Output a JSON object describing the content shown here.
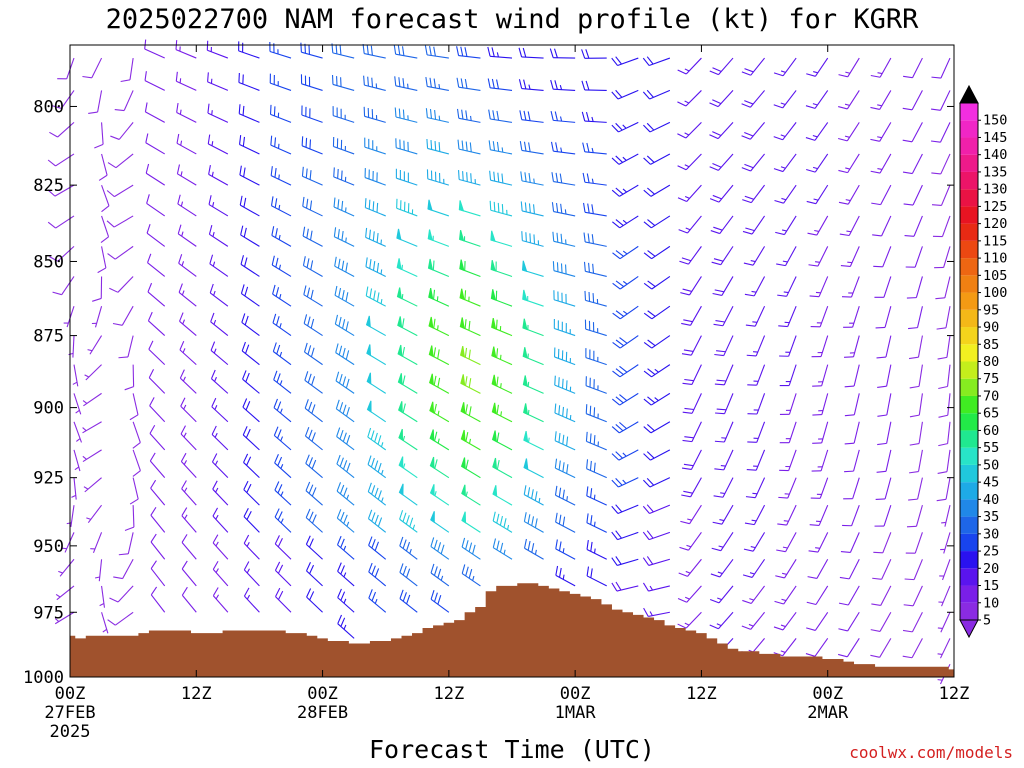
{
  "chart_data": {
    "type": "wind_profile",
    "title": "2025022700 NAM forecast wind profile (kt) for KGRR",
    "xlabel": "Forecast Time (UTC)",
    "ylabel": "",
    "credit": "coolwx.com/models",
    "x_unit": "hours since 2025-02-27 00Z",
    "xlim": [
      0,
      84
    ],
    "ylim": [
      1000,
      781
    ],
    "y_ticks": [
      {
        "value": 800,
        "label": "800"
      },
      {
        "value": 825,
        "label": "825"
      },
      {
        "value": 850,
        "label": "850"
      },
      {
        "value": 875,
        "label": "875"
      },
      {
        "value": 900,
        "label": "900"
      },
      {
        "value": 925,
        "label": "925"
      },
      {
        "value": 950,
        "label": "950"
      },
      {
        "value": 975,
        "label": "975"
      },
      {
        "value": 1000,
        "label": "1000"
      }
    ],
    "x_ticks": [
      {
        "value": 0,
        "line1": "00Z",
        "line2": "27FEB",
        "line3": "2025"
      },
      {
        "value": 12,
        "line1": "12Z",
        "line2": "",
        "line3": ""
      },
      {
        "value": 24,
        "line1": "00Z",
        "line2": "28FEB",
        "line3": ""
      },
      {
        "value": 36,
        "line1": "12Z",
        "line2": "",
        "line3": ""
      },
      {
        "value": 48,
        "line1": "00Z",
        "line2": "1MAR",
        "line3": ""
      },
      {
        "value": 60,
        "line1": "12Z",
        "line2": "",
        "line3": ""
      },
      {
        "value": 72,
        "line1": "00Z",
        "line2": "2MAR",
        "line3": ""
      },
      {
        "value": 84,
        "line1": "12Z",
        "line2": "",
        "line3": ""
      }
    ],
    "surface_pressure": {
      "hours": [
        0,
        1,
        2,
        3,
        4,
        5,
        6,
        7,
        8,
        9,
        10,
        11,
        12,
        13,
        14,
        15,
        16,
        17,
        18,
        19,
        20,
        21,
        22,
        23,
        24,
        25,
        26,
        27,
        28,
        29,
        30,
        31,
        32,
        33,
        34,
        35,
        36,
        37,
        38,
        39,
        40,
        41,
        42,
        43,
        44,
        45,
        46,
        47,
        48,
        49,
        50,
        51,
        52,
        53,
        54,
        55,
        56,
        57,
        58,
        59,
        60,
        61,
        62,
        63,
        64,
        65,
        66,
        67,
        68,
        69,
        70,
        71,
        72,
        73,
        74,
        75,
        76,
        77,
        78,
        79,
        80,
        81,
        82,
        83,
        84
      ],
      "hpa": [
        984,
        985,
        984,
        984,
        984,
        984,
        984,
        983,
        982,
        982,
        982,
        982,
        983,
        983,
        983,
        982,
        982,
        982,
        982,
        982,
        982,
        983,
        983,
        984,
        985,
        986,
        986,
        987,
        987,
        986,
        986,
        985,
        984,
        983,
        981,
        980,
        979,
        978,
        975,
        973,
        967,
        965,
        965,
        964,
        964,
        965,
        966,
        967,
        968,
        969,
        970,
        972,
        974,
        975,
        976,
        977,
        978,
        980,
        981,
        982,
        983,
        985,
        987,
        989,
        990,
        990,
        991,
        991,
        992,
        992,
        992,
        992,
        993,
        993,
        994,
        995,
        995,
        996,
        996,
        996,
        996,
        996,
        996,
        996,
        997
      ]
    },
    "levels_hpa": [
      785,
      795,
      805,
      815,
      825,
      835,
      845,
      855,
      865,
      875,
      885,
      895,
      905,
      915,
      925,
      935,
      945,
      955,
      965,
      975,
      985,
      995
    ],
    "times_hours": [
      0,
      3,
      6,
      9,
      12,
      15,
      18,
      21,
      24,
      27,
      30,
      33,
      36,
      39,
      42,
      45,
      48,
      51,
      54,
      57,
      60,
      63,
      66,
      69,
      72,
      75,
      78,
      81,
      84
    ],
    "wind_field": {
      "description": "Synoptic wind field: light variable winds first hours; strong westerly/northwesterly flow peaking near 28FEB 12Z-1MAR 00Z (45-70 kt aloft); shift to light southerly/southwesterly by 2MAR.",
      "peak_speed_kt": 70,
      "peak_time_hour": 39,
      "peak_level_hpa": 895
    },
    "colorbar": {
      "levels": [
        5,
        10,
        15,
        20,
        25,
        30,
        35,
        40,
        45,
        50,
        55,
        60,
        65,
        70,
        75,
        80,
        85,
        90,
        95,
        100,
        105,
        110,
        115,
        120,
        125,
        130,
        135,
        140,
        145,
        150
      ],
      "labels": [
        "5",
        "10",
        "15",
        "20",
        "25",
        "30",
        "35",
        "40",
        "45",
        "50",
        "55",
        "60",
        "65",
        "70",
        "75",
        "80",
        "85",
        "90",
        "95",
        "100",
        "105",
        "110",
        "115",
        "120",
        "125",
        "130",
        "135",
        "140",
        "145",
        "150"
      ],
      "colors": [
        "#8a2be2",
        "#7a1fe8",
        "#5a14ee",
        "#2a12f0",
        "#1844ee",
        "#1e66e8",
        "#2088e8",
        "#1eaae6",
        "#20c8dc",
        "#28e4c8",
        "#20e890",
        "#22ea48",
        "#40ec22",
        "#86ec20",
        "#c4ee1c",
        "#f2f020",
        "#f4d41c",
        "#f4b818",
        "#f49a14",
        "#f08012",
        "#ee6612",
        "#ec4812",
        "#e82a14",
        "#e81422",
        "#ea1244",
        "#ec1468",
        "#ee1a8a",
        "#f020aa",
        "#f026c6",
        "#f22ee0"
      ]
    },
    "terrain_color": "#a0522d",
    "grid": false
  }
}
